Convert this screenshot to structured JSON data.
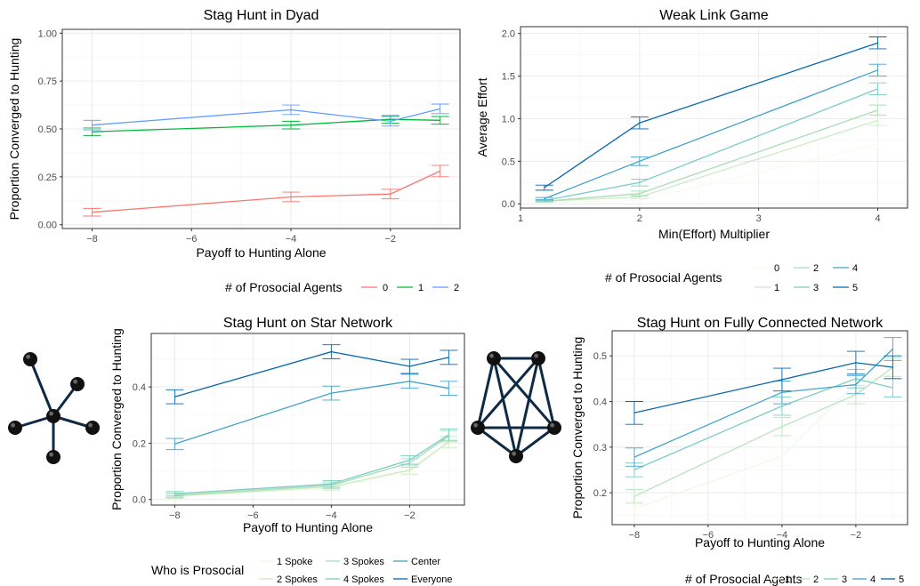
{
  "chart_data": [
    {
      "id": "dyad",
      "type": "line",
      "title": "Stag Hunt in Dyad",
      "xlabel": "Payoff to Hunting Alone",
      "ylabel": "Proportion Converged to Hunting",
      "xlim": [
        -8.6,
        -0.6
      ],
      "ylim": [
        -0.02,
        1.02
      ],
      "xticks": [
        -8,
        -6,
        -4,
        -2
      ],
      "xtick_labels": [
        "−8",
        "−6",
        "−4",
        "−2"
      ],
      "yticks": [
        0,
        0.25,
        0.5,
        0.75,
        1
      ],
      "ytick_labels": [
        "0.00",
        "0.25",
        "0.50",
        "0.75",
        "1.00"
      ],
      "grid": true,
      "legend": {
        "title": "# of Prosocial Agents",
        "position": "bottom",
        "rows": 1
      },
      "series": [
        {
          "name": "0",
          "color": "#f8766d",
          "x": [
            -8,
            -4,
            -2,
            -1
          ],
          "y": [
            0.065,
            0.145,
            0.16,
            0.28
          ],
          "err": [
            0.02,
            0.025,
            0.025,
            0.03
          ]
        },
        {
          "name": "1",
          "color": "#00ba38",
          "x": [
            -8,
            -4,
            -2,
            -1
          ],
          "y": [
            0.485,
            0.52,
            0.55,
            0.545
          ],
          "err": [
            0.02,
            0.02,
            0.02,
            0.02
          ]
        },
        {
          "name": "2",
          "color": "#619cff",
          "x": [
            -8,
            -4,
            -2,
            -1
          ],
          "y": [
            0.52,
            0.6,
            0.54,
            0.605
          ],
          "err": [
            0.025,
            0.025,
            0.025,
            0.025
          ]
        }
      ]
    },
    {
      "id": "weaklink",
      "type": "line",
      "title": "Weak Link Game",
      "xlabel": "Min(Effort) Multiplier",
      "ylabel": "Average Effort",
      "xlim": [
        1.0,
        4.25
      ],
      "ylim": [
        -0.05,
        2.08
      ],
      "xticks": [
        1,
        2,
        3,
        4
      ],
      "xtick_labels": [
        "1",
        "2",
        "3",
        "4"
      ],
      "yticks": [
        0,
        0.5,
        1,
        1.5,
        2
      ],
      "ytick_labels": [
        "0.0",
        "0.5",
        "1.0",
        "1.5",
        "2.0"
      ],
      "grid": true,
      "legend": {
        "title": "# of Prosocial Agents",
        "position": "bottom",
        "rows": 2
      },
      "series": [
        {
          "name": "0",
          "color": "#f7fcf0",
          "x": [
            1.2,
            2,
            4
          ],
          "y": [
            0.02,
            0.04,
            0.7
          ],
          "err": [
            0.01,
            0.02,
            0.05
          ]
        },
        {
          "name": "1",
          "color": "#ccebc5",
          "x": [
            1.2,
            2,
            4
          ],
          "y": [
            0.03,
            0.08,
            0.98
          ],
          "err": [
            0.01,
            0.02,
            0.06
          ]
        },
        {
          "name": "2",
          "color": "#a8ddb5",
          "x": [
            1.2,
            2,
            4
          ],
          "y": [
            0.03,
            0.12,
            1.1
          ],
          "err": [
            0.01,
            0.03,
            0.06
          ]
        },
        {
          "name": "3",
          "color": "#7bccc4",
          "x": [
            1.2,
            2,
            4
          ],
          "y": [
            0.04,
            0.25,
            1.35
          ],
          "err": [
            0.01,
            0.04,
            0.07
          ]
        },
        {
          "name": "4",
          "color": "#43a2ca",
          "x": [
            1.2,
            2,
            4
          ],
          "y": [
            0.06,
            0.5,
            1.57
          ],
          "err": [
            0.015,
            0.05,
            0.07
          ]
        },
        {
          "name": "5",
          "color": "#0868ac",
          "x": [
            1.2,
            2,
            4
          ],
          "y": [
            0.19,
            0.95,
            1.89
          ],
          "err": [
            0.03,
            0.07,
            0.07
          ]
        }
      ]
    },
    {
      "id": "star",
      "type": "line",
      "title": "Stag Hunt on Star Network",
      "xlabel": "Payoff to Hunting Alone",
      "ylabel": "Proportion Converged to Hunting",
      "xlim": [
        -8.6,
        -0.6
      ],
      "ylim": [
        -0.02,
        0.59
      ],
      "xticks": [
        -8,
        -6,
        -4,
        -2
      ],
      "xtick_labels": [
        "−8",
        "−6",
        "−4",
        "−2"
      ],
      "yticks": [
        0,
        0.2,
        0.4
      ],
      "ytick_labels": [
        "0.0",
        "0.2",
        "0.4"
      ],
      "grid": true,
      "legend": {
        "title": "Who is Prosocial",
        "position": "bottom",
        "rows": 2
      },
      "series": [
        {
          "name": "1 Spoke",
          "color": "#f0f9e8",
          "x": [
            -8,
            -4,
            -2,
            -1
          ],
          "y": [
            0.01,
            0.04,
            0.1,
            0.2
          ],
          "err": [
            0.008,
            0.012,
            0.015,
            0.02
          ]
        },
        {
          "name": "2 Spokes",
          "color": "#ccebc5",
          "x": [
            -8,
            -4,
            -2,
            -1
          ],
          "y": [
            0.012,
            0.045,
            0.105,
            0.205
          ],
          "err": [
            0.008,
            0.012,
            0.015,
            0.02
          ]
        },
        {
          "name": "3 Spokes",
          "color": "#a8ddb5",
          "x": [
            -8,
            -4,
            -2,
            -1
          ],
          "y": [
            0.015,
            0.05,
            0.13,
            0.225
          ],
          "err": [
            0.008,
            0.012,
            0.015,
            0.02
          ]
        },
        {
          "name": "4 Spokes",
          "color": "#7bccc4",
          "x": [
            -8,
            -4,
            -2,
            -1
          ],
          "y": [
            0.02,
            0.055,
            0.14,
            0.23
          ],
          "err": [
            0.008,
            0.012,
            0.015,
            0.02
          ]
        },
        {
          "name": "Center",
          "color": "#43a2ca",
          "x": [
            -8,
            -4,
            -2,
            -1
          ],
          "y": [
            0.197,
            0.378,
            0.42,
            0.395
          ],
          "err": [
            0.02,
            0.025,
            0.025,
            0.025
          ]
        },
        {
          "name": "Everyone",
          "color": "#0868ac",
          "x": [
            -8,
            -4,
            -2,
            -1
          ],
          "y": [
            0.365,
            0.525,
            0.473,
            0.505
          ],
          "err": [
            0.025,
            0.025,
            0.025,
            0.025
          ]
        }
      ]
    },
    {
      "id": "full",
      "type": "line",
      "title": "Stag Hunt on Fully Connected Network",
      "xlabel": "Payoff to Hunting Alone",
      "ylabel": "Proportion Converged to Hunting",
      "xlim": [
        -8.6,
        -0.6
      ],
      "ylim": [
        0.13,
        0.555
      ],
      "xticks": [
        -8,
        -6,
        -4,
        -2
      ],
      "xtick_labels": [
        "−8",
        "−6",
        "−4",
        "−2"
      ],
      "yticks": [
        0.2,
        0.3,
        0.4,
        0.5
      ],
      "ytick_labels": [
        "0.2",
        "0.3",
        "0.4",
        "0.5"
      ],
      "grid": true,
      "legend": {
        "title": "# of Prosocial Agents",
        "position": "bottom",
        "rows": 1
      },
      "series": [
        {
          "name": "1",
          "color": "#f0f9e8",
          "x": [
            -8,
            -4,
            -2,
            -1
          ],
          "y": [
            0.165,
            0.28,
            0.44,
            0.46
          ],
          "err": [
            0.015,
            0.02,
            0.02,
            0.02
          ]
        },
        {
          "name": "2",
          "color": "#bae4bc",
          "x": [
            -8,
            -4,
            -2,
            -1
          ],
          "y": [
            0.192,
            0.345,
            0.415,
            0.475
          ],
          "err": [
            0.015,
            0.02,
            0.02,
            0.02
          ]
        },
        {
          "name": "3",
          "color": "#7bccc4",
          "x": [
            -8,
            -4,
            -2,
            -1
          ],
          "y": [
            0.25,
            0.39,
            0.45,
            0.43
          ],
          "err": [
            0.015,
            0.02,
            0.02,
            0.02
          ]
        },
        {
          "name": "4",
          "color": "#43a2ca",
          "x": [
            -8,
            -4,
            -2,
            -1
          ],
          "y": [
            0.278,
            0.42,
            0.437,
            0.515
          ],
          "err": [
            0.02,
            0.025,
            0.02,
            0.025
          ]
        },
        {
          "name": "5",
          "color": "#0868ac",
          "x": [
            -8,
            -4,
            -2,
            -1
          ],
          "y": [
            0.375,
            0.448,
            0.485,
            0.475
          ],
          "err": [
            0.025,
            0.025,
            0.025,
            0.025
          ]
        }
      ]
    }
  ],
  "network_colors": {
    "node": "#111111",
    "edge": "#0f2a44"
  }
}
